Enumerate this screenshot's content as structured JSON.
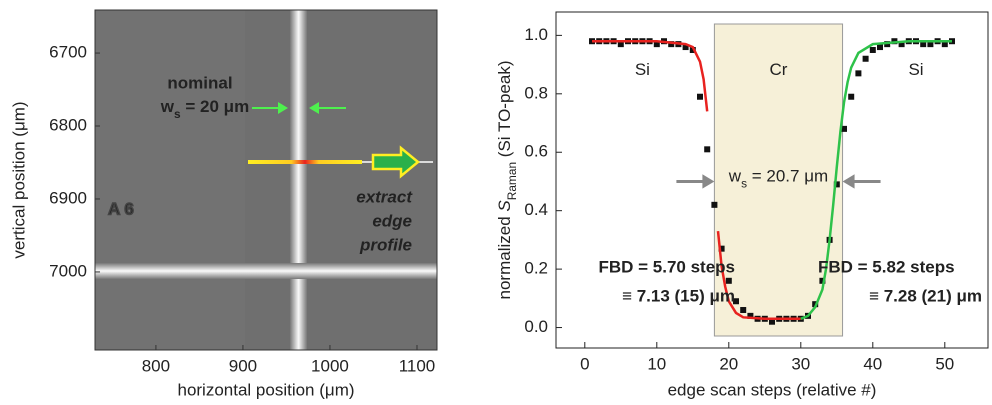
{
  "chart_data": [
    {
      "type": "image",
      "xlabel": "horizontal position  (μm)",
      "ylabel": "vertical position  (μm)",
      "xlim": [
        730,
        1123
      ],
      "xticks": [
        800,
        900,
        1000,
        1100
      ],
      "ylim": [
        7107,
        6641
      ],
      "yticks": [
        6700,
        6800,
        6900,
        7000
      ],
      "annotations": {
        "nominal": "nominal",
        "width": {
          "main": "w",
          "sub": "s",
          "rest": " = 20 μm"
        },
        "extract": [
          "extract",
          "edge",
          "profile"
        ],
        "marker": "A 6"
      },
      "colors": {
        "green": "#4ef04e",
        "yellow": "#ffee22"
      }
    },
    {
      "type": "scatter",
      "xlabel": "edge scan steps  (relative #)",
      "ylabel": {
        "pre": "normalized ",
        "main": "S",
        "sub": "Raman",
        "rest": "  (Si  TO-peak)"
      },
      "xlim": [
        -4,
        56
      ],
      "xticks": [
        0,
        10,
        20,
        30,
        40,
        50
      ],
      "ylim": [
        -0.07,
        1.08
      ],
      "yticks": [
        {
          "value": 0,
          "label": "0.0"
        },
        0.2,
        0.4,
        0.6,
        0.8,
        {
          "value": 1,
          "label": "1.0"
        }
      ],
      "x": [
        1,
        2,
        3,
        4,
        5,
        6,
        7,
        8,
        9,
        10,
        11,
        12,
        13,
        14,
        15,
        16,
        17,
        18,
        19,
        20,
        21,
        22,
        23,
        24,
        25,
        26,
        27,
        28,
        29,
        30,
        31,
        32,
        33,
        34,
        35,
        36,
        37,
        38,
        39,
        40,
        41,
        42,
        43,
        44,
        45,
        46,
        47,
        48,
        49,
        50,
        51
      ],
      "values": [
        0.98,
        0.98,
        0.98,
        0.98,
        0.97,
        0.98,
        0.98,
        0.98,
        0.98,
        0.97,
        0.98,
        0.97,
        0.97,
        0.96,
        0.95,
        0.79,
        0.61,
        0.42,
        0.27,
        0.16,
        0.09,
        0.06,
        0.04,
        0.03,
        0.03,
        0.02,
        0.03,
        0.03,
        0.03,
        0.03,
        0.04,
        0.08,
        0.16,
        0.3,
        0.49,
        0.68,
        0.79,
        0.87,
        0.92,
        0.95,
        0.96,
        0.97,
        0.98,
        0.97,
        0.98,
        0.98,
        0.97,
        0.97,
        0.98,
        0.97,
        0.98
      ],
      "color": "#111111",
      "fits": [
        {
          "color": "#e8221f",
          "x": [
            1,
            5,
            10,
            14,
            15,
            16,
            16.5,
            17,
            17.5,
            18,
            18.5,
            19,
            19.5,
            20,
            21,
            22,
            25,
            30
          ],
          "values": [
            0.98,
            0.98,
            0.98,
            0.97,
            0.96,
            0.91,
            0.85,
            0.74,
            null,
            null,
            0.33,
            0.21,
            0.14,
            0.09,
            0.05,
            0.035,
            0.03,
            0.03
          ]
        },
        {
          "color": "#2ec24a",
          "x": [
            30,
            31,
            32,
            33,
            33.5,
            34,
            34.5,
            35,
            35.5,
            36,
            36.5,
            37,
            38,
            40,
            45,
            51
          ],
          "values": [
            0.03,
            0.04,
            0.07,
            0.13,
            0.2,
            0.3,
            0.42,
            0.55,
            0.67,
            0.77,
            0.84,
            0.89,
            0.94,
            0.97,
            0.98,
            0.98
          ]
        }
      ],
      "region": {
        "x": [
          18,
          35.8
        ],
        "label": "Cr",
        "color": "#f6f0d8"
      },
      "labels": {
        "left": "Si",
        "right": "Si"
      },
      "width_label": {
        "main": "w",
        "sub": "s",
        "rest": " = 20.7 μm"
      },
      "fbd": [
        {
          "lines": [
            "FBD = 5.70 steps",
            "≡ 7.13 (15) μm"
          ],
          "color": "#e8221f"
        },
        {
          "lines": [
            "FBD = 5.82 steps",
            "≡ 7.28 (21) μm"
          ],
          "color": "#2ec24a"
        }
      ]
    }
  ]
}
